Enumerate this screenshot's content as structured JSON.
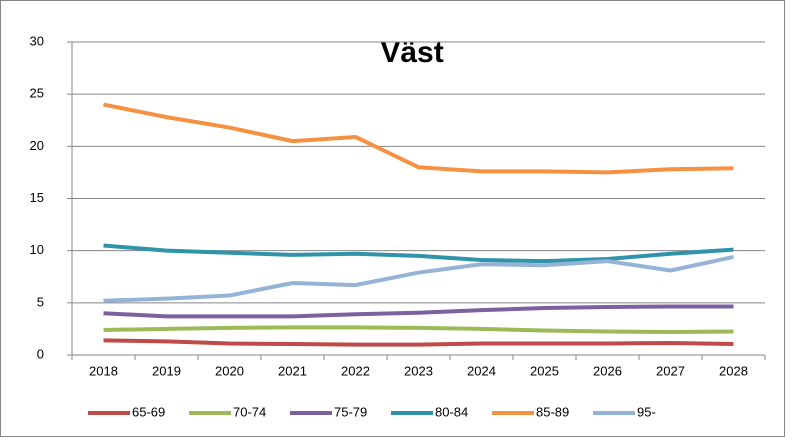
{
  "chart_data": {
    "type": "line",
    "title": "Väst",
    "categories": [
      "2018",
      "2019",
      "2020",
      "2021",
      "2022",
      "2023",
      "2024",
      "2025",
      "2026",
      "2027",
      "2028"
    ],
    "series": [
      {
        "name": "65-69",
        "color": "#be4b48",
        "values": [
          1.4,
          1.3,
          1.1,
          1.05,
          1.0,
          1.0,
          1.1,
          1.1,
          1.1,
          1.15,
          1.05
        ]
      },
      {
        "name": "70-74",
        "color": "#9bbb59",
        "values": [
          2.4,
          2.5,
          2.6,
          2.65,
          2.65,
          2.6,
          2.5,
          2.35,
          2.25,
          2.2,
          2.25
        ]
      },
      {
        "name": "75-79",
        "color": "#7d60a0",
        "values": [
          4.0,
          3.7,
          3.7,
          3.7,
          3.9,
          4.05,
          4.3,
          4.5,
          4.6,
          4.65,
          4.65
        ]
      },
      {
        "name": "80-84",
        "color": "#2f93aa",
        "values": [
          10.5,
          10.0,
          9.8,
          9.6,
          9.7,
          9.5,
          9.1,
          9.0,
          9.2,
          9.7,
          10.1
        ]
      },
      {
        "name": "85-89",
        "color": "#f59141",
        "values": [
          24.0,
          22.8,
          21.8,
          20.5,
          20.9,
          18.0,
          17.6,
          17.6,
          17.5,
          17.8,
          17.9
        ]
      },
      {
        "name": "95-",
        "color": "#95b3d7",
        "values": [
          5.2,
          5.4,
          5.7,
          6.9,
          6.7,
          7.9,
          8.7,
          8.6,
          9.0,
          8.1,
          9.4
        ]
      }
    ],
    "ylim": [
      0,
      30
    ],
    "yticks": [
      0,
      5,
      10,
      15,
      20,
      25,
      30
    ],
    "grid": true,
    "legend": "bottom"
  }
}
